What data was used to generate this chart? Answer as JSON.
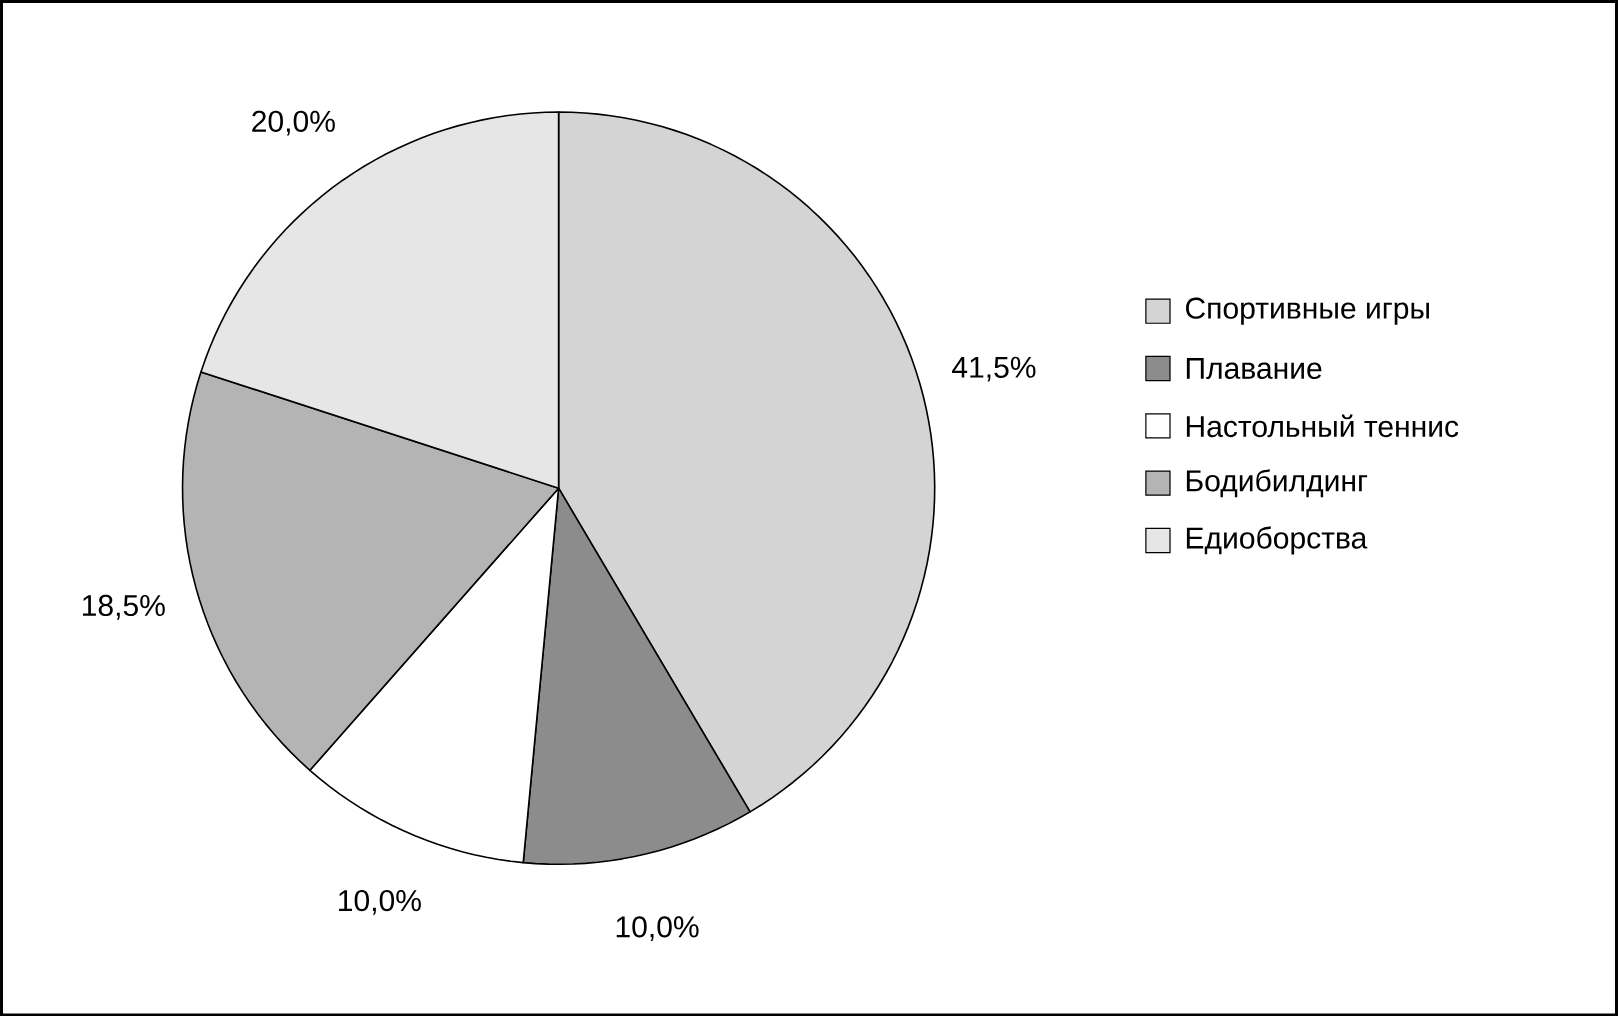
{
  "chart_data": {
    "type": "pie",
    "categories": [
      "Спортивные игры",
      "Плавание",
      "Настольный теннис",
      "Бодибилдинг",
      "Едиоборства"
    ],
    "values": [
      41.5,
      10.0,
      10.0,
      18.5,
      20.0
    ],
    "value_labels": [
      "41,5%",
      "10,0%",
      "10,0%",
      "18,5%",
      "20,0%"
    ],
    "colors": [
      "#d4d4d4",
      "#8c8c8c",
      "#ffffff",
      "#b4b4b4",
      "#e6e6e6"
    ],
    "legend": "right"
  }
}
